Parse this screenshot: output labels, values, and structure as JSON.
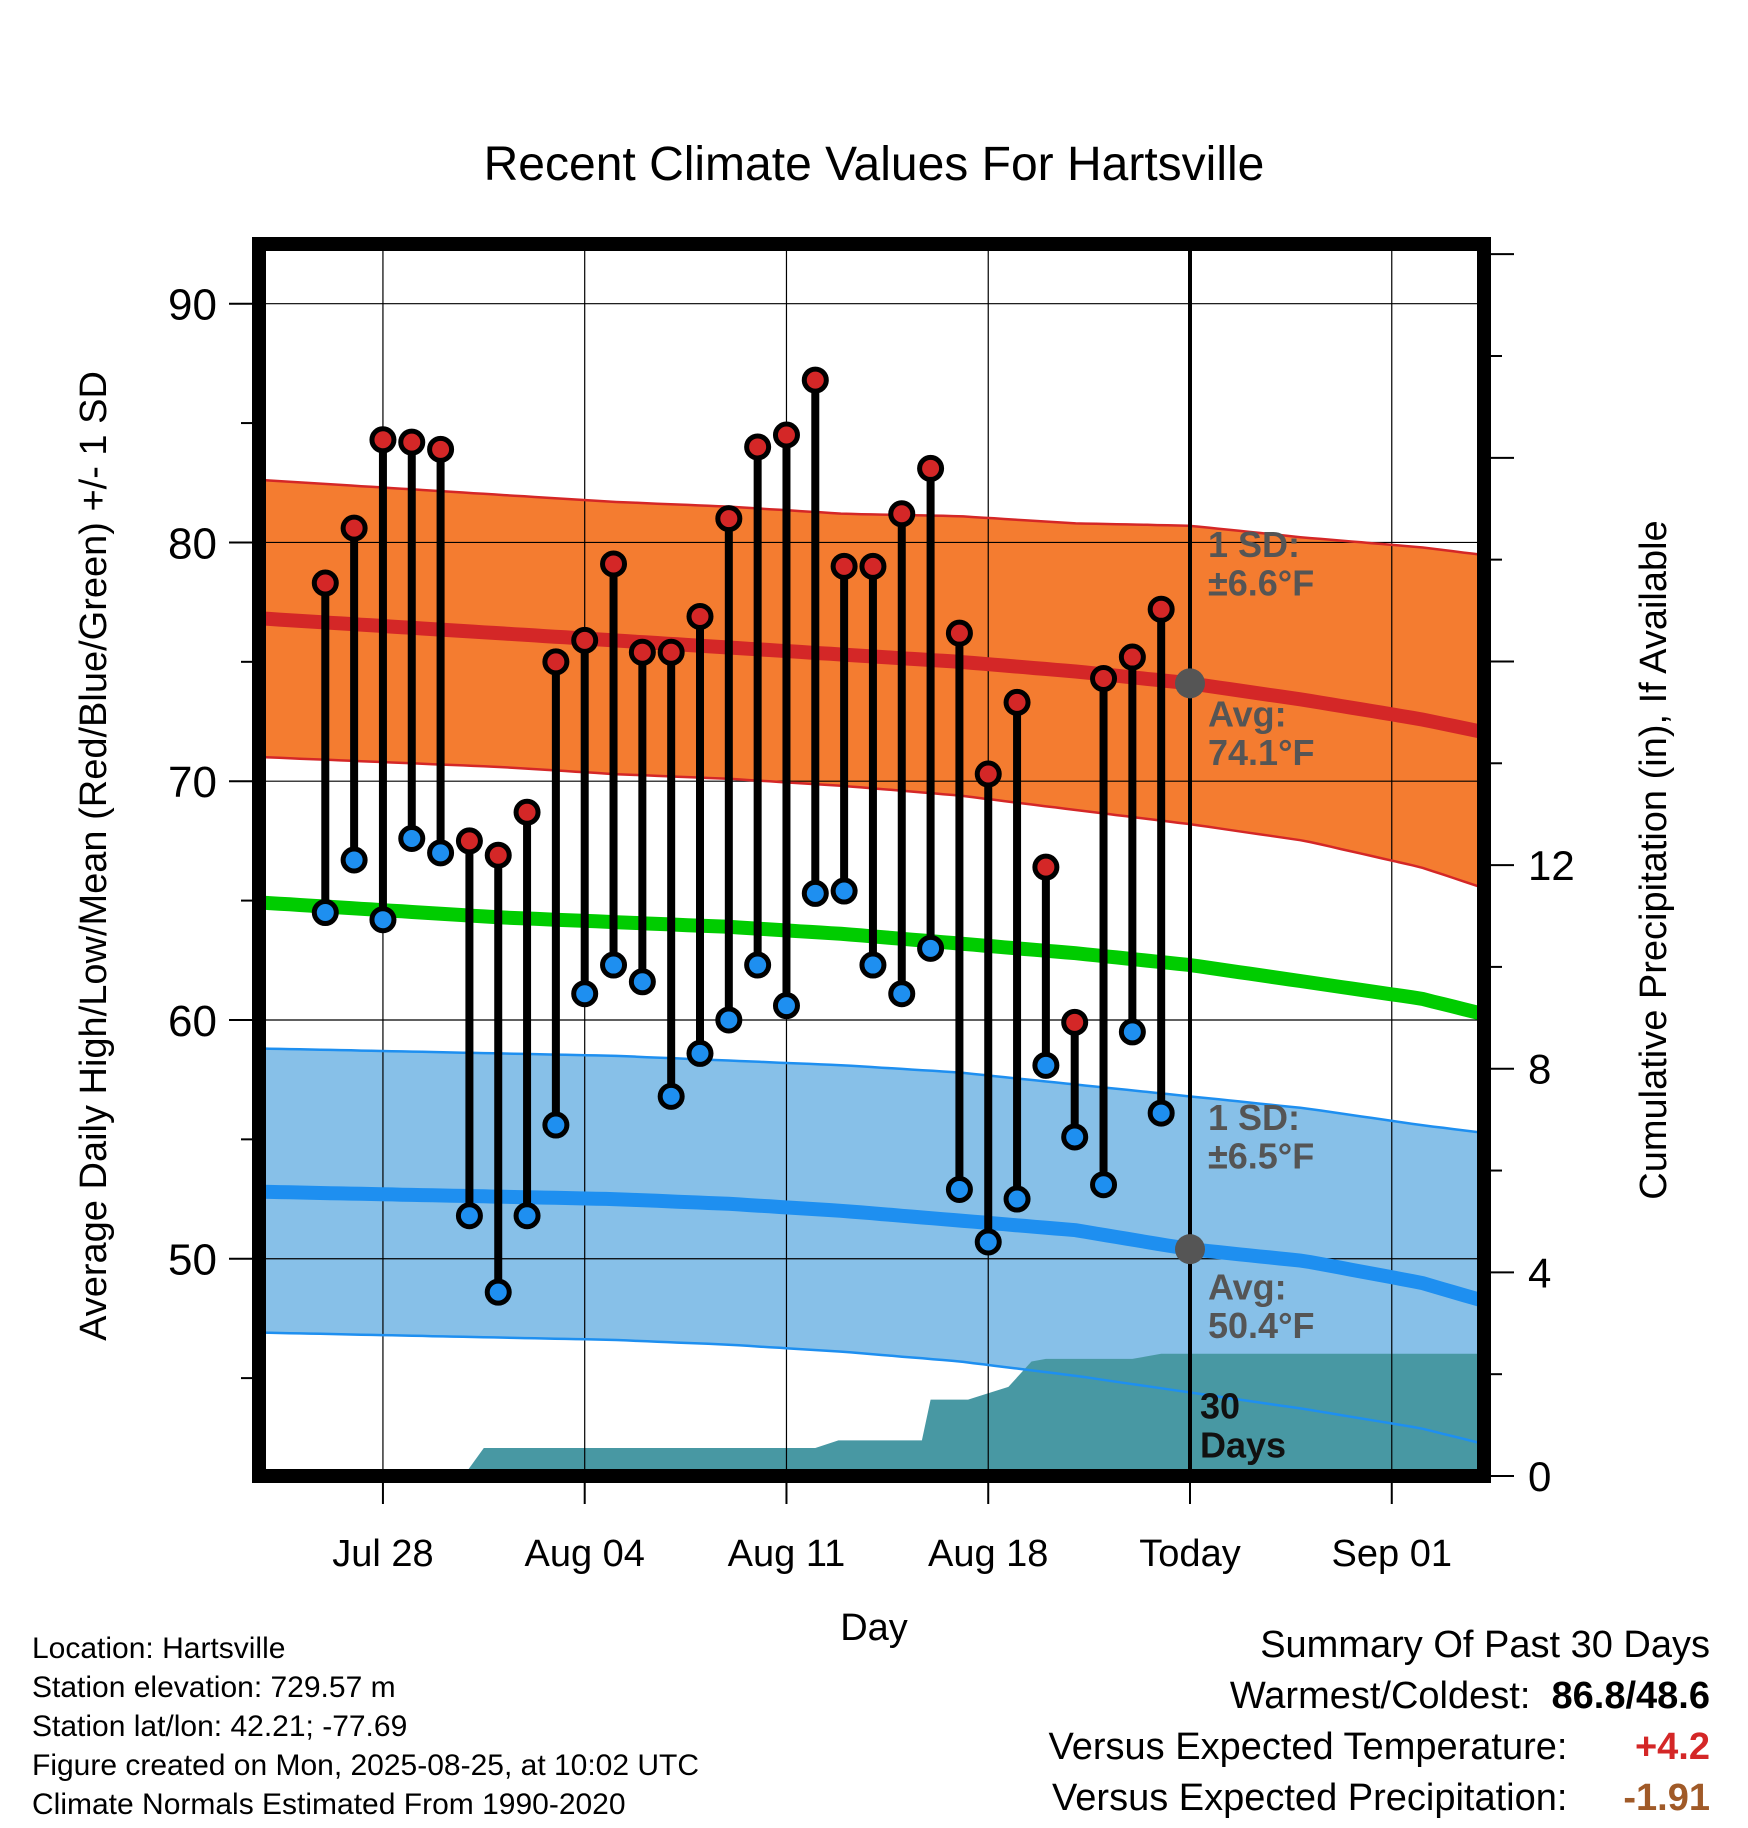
{
  "chart_data": {
    "type": "line",
    "title": "Recent Climate Values For Hartsville",
    "xlabel": "Day",
    "ylabel": "Average Daily High/Low/Mean (Red/Blue/Green) +/- 1 SD",
    "y2label": "Cumulative Precipitation (in), If Available",
    "ylim": [
      40.9,
      92.5
    ],
    "y_ticks": [
      50,
      60,
      70,
      80,
      90
    ],
    "y2lim": [
      0,
      24.2
    ],
    "y2_ticks": [
      0,
      4,
      8,
      12
    ],
    "x_range_days": [
      -32.3,
      10.2
    ],
    "x_ticks": [
      {
        "day": -28,
        "label": "Jul 28"
      },
      {
        "day": -21,
        "label": "Aug 04"
      },
      {
        "day": -14,
        "label": "Aug 11"
      },
      {
        "day": -7,
        "label": "Aug 18"
      },
      {
        "day": 0,
        "label": "Today"
      },
      {
        "day": 7,
        "label": "Sep 01"
      }
    ],
    "grid": true,
    "colors": {
      "high_band": "#f47c30",
      "high_line": "#d42727",
      "low_band": "#87c0e8",
      "low_line": "#1e8ff0",
      "mean_line": "#00cc00",
      "precip_fill": "#4898a3",
      "high_marker": "#d42727",
      "low_marker": "#1e8ff0",
      "annotation": "#555555"
    },
    "normals": {
      "days": [
        -32,
        -28,
        -24,
        -20,
        -16,
        -12,
        -8,
        -4,
        0,
        4,
        8,
        10
      ],
      "high_mean": [
        76.8,
        76.5,
        76.2,
        75.9,
        75.6,
        75.3,
        75.0,
        74.6,
        74.1,
        73.4,
        72.6,
        72.1
      ],
      "high_upper": [
        82.6,
        82.3,
        82.0,
        81.7,
        81.5,
        81.2,
        81.1,
        80.8,
        80.7,
        80.2,
        79.8,
        79.5
      ],
      "high_lower": [
        71.0,
        70.8,
        70.6,
        70.3,
        70.1,
        69.8,
        69.4,
        68.8,
        68.2,
        67.5,
        66.4,
        65.6
      ],
      "mean": [
        64.9,
        64.6,
        64.3,
        64.1,
        63.9,
        63.6,
        63.2,
        62.8,
        62.3,
        61.6,
        60.9,
        60.3
      ],
      "low_mean": [
        52.8,
        52.7,
        52.6,
        52.5,
        52.3,
        52.0,
        51.6,
        51.2,
        50.4,
        49.9,
        49.0,
        48.3
      ],
      "low_upper": [
        58.8,
        58.7,
        58.6,
        58.5,
        58.3,
        58.1,
        57.8,
        57.3,
        56.8,
        56.3,
        55.6,
        55.3
      ],
      "low_lower": [
        46.9,
        46.8,
        46.7,
        46.6,
        46.4,
        46.1,
        45.7,
        45.1,
        44.4,
        43.7,
        42.9,
        42.3
      ]
    },
    "daily": {
      "days": [
        -30,
        -29,
        -28,
        -27,
        -26,
        -25,
        -24,
        -23,
        -22,
        -21,
        -20,
        -19,
        -18,
        -17,
        -16,
        -15,
        -14,
        -13,
        -12,
        -11,
        -10,
        -9,
        -8,
        -7,
        -6,
        -5,
        -4,
        -3,
        -2,
        -1
      ],
      "high": [
        78.3,
        80.6,
        84.3,
        84.2,
        83.9,
        67.5,
        66.9,
        68.7,
        75.0,
        75.9,
        79.1,
        75.4,
        75.4,
        76.9,
        81.0,
        84.0,
        84.5,
        86.8,
        79.0,
        79.0,
        81.2,
        83.1,
        76.2,
        70.3,
        73.3,
        66.4,
        59.9,
        74.3,
        75.2,
        77.2
      ],
      "low": [
        64.5,
        66.7,
        64.2,
        67.6,
        67.0,
        51.8,
        48.6,
        51.8,
        55.6,
        61.1,
        62.3,
        61.6,
        56.8,
        58.6,
        60.0,
        62.3,
        60.6,
        65.3,
        65.4,
        62.3,
        61.1,
        63.0,
        52.9,
        50.7,
        52.5,
        58.1,
        55.1,
        53.1,
        59.5,
        56.1
      ]
    },
    "precip_cumulative": {
      "days": [
        -32.3,
        -25.2,
        -24.5,
        -13.0,
        -12.2,
        -9.3,
        -9.0,
        -7.7,
        -6.3,
        -5.5,
        -5.0,
        -4.5,
        -2.0,
        -1.0,
        10.2
      ],
      "values": [
        0,
        0,
        0.55,
        0.55,
        0.7,
        0.7,
        1.5,
        1.5,
        1.75,
        2.25,
        2.3,
        2.3,
        2.3,
        2.4,
        2.4
      ]
    },
    "today_markers": [
      {
        "value": 74.1,
        "series": "high"
      },
      {
        "value": 50.4,
        "series": "low"
      }
    ],
    "annotations": {
      "high_sd": [
        "1 SD:",
        "±6.6°F"
      ],
      "high_avg": [
        "Avg:",
        "74.1°F"
      ],
      "low_sd": [
        "1 SD:",
        "±6.5°F"
      ],
      "low_avg": [
        "Avg:",
        "50.4°F"
      ],
      "precip_window": [
        "30",
        "Days"
      ]
    }
  },
  "info": {
    "location": "Location: Hartsville",
    "elevation": "Station elevation: 729.57 m",
    "latlon": "Station lat/lon: 42.21; -77.69",
    "created": "Figure created on Mon, 2025-08-25, at 10:02 UTC",
    "normals": "Climate Normals Estimated From 1990-2020"
  },
  "summary": {
    "heading": "Summary Of Past 30 Days",
    "warm_cold_label": "Warmest/Coldest:",
    "warm_cold_value": "86.8/48.6",
    "temp_label": "Versus Expected Temperature:",
    "temp_value": "+4.2",
    "temp_color": "#d42727",
    "precip_label": "Versus Expected Precipitation:",
    "precip_value": "-1.91",
    "precip_color": "#a05a28"
  }
}
